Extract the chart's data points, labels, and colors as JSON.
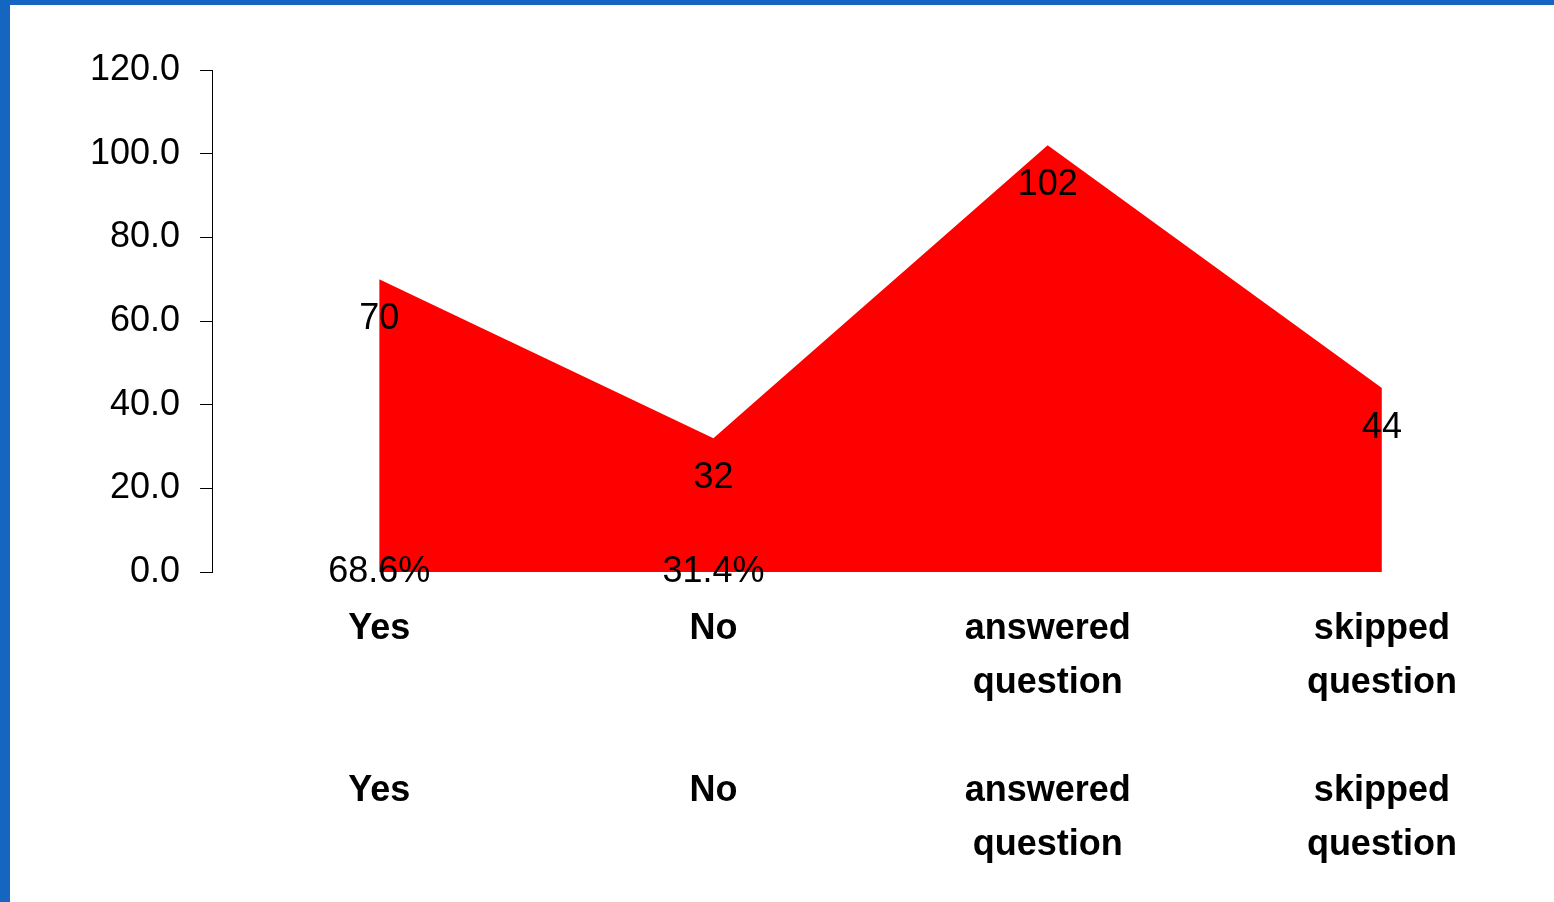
{
  "chart_data": {
    "type": "area",
    "categories": [
      "Yes",
      "No",
      "answered question",
      "skipped question"
    ],
    "series": [
      {
        "color": "#ff0000",
        "values": [
          70,
          32,
          102,
          44
        ]
      }
    ],
    "data_labels": true,
    "ylim": [
      0,
      120
    ],
    "yticks": [
      {
        "value": 0,
        "label": "0.0"
      },
      {
        "value": 20,
        "label": "20.0"
      },
      {
        "value": 40,
        "label": "40.0"
      },
      {
        "value": 60,
        "label": "60.0"
      },
      {
        "value": 80,
        "label": "80.0"
      },
      {
        "value": 100,
        "label": "100.0"
      },
      {
        "value": 120,
        "label": "120.0"
      }
    ],
    "annotations": [
      {
        "text": "68.6%",
        "x": "Yes",
        "y": 0
      },
      {
        "text": "31.4%",
        "x": "No",
        "y": 0
      }
    ],
    "grid": false,
    "legend": false
  }
}
